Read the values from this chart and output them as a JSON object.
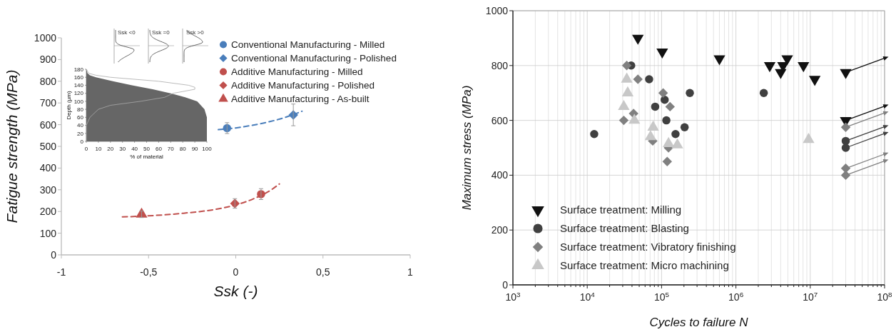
{
  "chart_data": [
    {
      "type": "scatter",
      "xlabel": "Ssk (-)",
      "ylabel": "Fatigue strength (MPa)",
      "xlim": [
        -1,
        1
      ],
      "ylim": [
        0,
        1000
      ],
      "xticks": [
        {
          "value": -1,
          "label": "-1"
        },
        {
          "value": -0.5,
          "label": "-0,5"
        },
        0,
        {
          "value": 0.5,
          "label": "0,5"
        },
        1
      ],
      "yticks": [
        0,
        100,
        200,
        300,
        400,
        500,
        600,
        700,
        800,
        900,
        1000
      ],
      "grid": false,
      "legend": "top right",
      "series": [
        {
          "name": "Conventional Manufacturing - Milled",
          "color": "#4a7ebb",
          "marker": "circle",
          "x": [
            -0.05
          ],
          "values": [
            584
          ],
          "errors": [
            25
          ]
        },
        {
          "name": "Conventional Manufacturing - Polished",
          "color": "#4a7ebb",
          "marker": "diamond",
          "x": [
            0.33
          ],
          "values": [
            645
          ],
          "errors": [
            50
          ]
        },
        {
          "name": "Additive Manufacturing - Milled",
          "color": "#c0504d",
          "marker": "circle",
          "x": [
            0.145
          ],
          "values": [
            280
          ],
          "errors": [
            25
          ]
        },
        {
          "name": "Additive Manufacturing - Polished",
          "color": "#c0504d",
          "marker": "diamond",
          "x": [
            -0.005
          ],
          "values": [
            237
          ],
          "errors": [
            22
          ]
        },
        {
          "name": "Additive Manufacturing - As-built",
          "color": "#c0504d",
          "marker": "triangle",
          "x": [
            -0.54
          ],
          "values": [
            187
          ],
          "errors": [
            15
          ]
        },
        {
          "type": "line",
          "color": "#4a7ebb",
          "line_style": "dashed",
          "x": [
            -0.1,
            0,
            0.1,
            0.2,
            0.3,
            0.38
          ],
          "values": [
            577,
            585,
            598,
            615,
            638,
            662
          ]
        },
        {
          "type": "line",
          "color": "#c0504d",
          "line_style": "dashed",
          "x": [
            -0.65,
            -0.5,
            -0.3,
            -0.1,
            0,
            0.1,
            0.2,
            0.25
          ],
          "values": [
            175,
            180,
            192,
            212,
            230,
            258,
            298,
            327
          ]
        }
      ]
    },
    {
      "type": "area",
      "orientation": "horizontal",
      "xlabel": "% of material",
      "ylabel": "Depth (µm)",
      "xlim": [
        0,
        100
      ],
      "ylim": [
        0,
        180
      ],
      "xticks": [
        0,
        10,
        20,
        30,
        40,
        50,
        60,
        70,
        80,
        90,
        100
      ],
      "yticks": [
        0,
        20,
        40,
        60,
        80,
        100,
        120,
        140,
        160,
        180
      ],
      "annotations": [
        "Ssk <0",
        "Ssk =0",
        "Ssk >0"
      ],
      "series": [
        {
          "type": "line",
          "color": "#aaaaaa",
          "x": [
            0,
            40,
            60,
            80,
            90,
            100,
            110,
            120,
            130,
            135,
            140,
            150,
            160,
            165,
            170,
            180
          ],
          "values": [
            0,
            0,
            3,
            10,
            20,
            45,
            65,
            72,
            90,
            90,
            85,
            60,
            20,
            8,
            2,
            0
          ]
        },
        {
          "color": "#666666",
          "x": [
            0,
            60,
            80,
            100,
            110,
            120,
            130,
            140,
            150,
            160,
            165,
            170,
            180
          ],
          "values": [
            100,
            100,
            98,
            92,
            82,
            70,
            55,
            38,
            22,
            8,
            3,
            1,
            0
          ]
        }
      ]
    },
    {
      "type": "scatter",
      "xlabel": "Cycles to failure N",
      "ylabel": "Maximum stress (MPa)",
      "log": "x",
      "xlim": [
        1000,
        100000000
      ],
      "ylim": [
        0,
        1000
      ],
      "xticks": [
        {
          "value": 1000,
          "label": "10$^{3}$"
        },
        {
          "value": 2000,
          "label": null
        },
        {
          "value": 3000,
          "label": null
        },
        {
          "value": 4000,
          "label": null
        },
        {
          "value": 5000,
          "label": null
        },
        {
          "value": 6000,
          "label": null
        },
        {
          "value": 7000,
          "label": null
        },
        {
          "value": 8000,
          "label": null
        },
        {
          "value": 9000,
          "label": null
        },
        {
          "value": 10000,
          "label": "10$^{4}$"
        },
        {
          "value": 20000,
          "label": null
        },
        {
          "value": 30000,
          "label": null
        },
        {
          "value": 40000,
          "label": null
        },
        {
          "value": 50000,
          "label": null
        },
        {
          "value": 60000,
          "label": null
        },
        {
          "value": 70000,
          "label": null
        },
        {
          "value": 80000,
          "label": null
        },
        {
          "value": 90000,
          "label": null
        },
        {
          "value": 100000,
          "label": "10$^{5}$"
        },
        {
          "value": 200000,
          "label": null
        },
        {
          "value": 300000,
          "label": null
        },
        {
          "value": 400000,
          "label": null
        },
        {
          "value": 500000,
          "label": null
        },
        {
          "value": 600000,
          "label": null
        },
        {
          "value": 700000,
          "label": null
        },
        {
          "value": 800000,
          "label": null
        },
        {
          "value": 900000,
          "label": null
        },
        {
          "value": 1000000,
          "label": "10$^{6}$"
        },
        {
          "value": 2000000,
          "label": null
        },
        {
          "value": 3000000,
          "label": null
        },
        {
          "value": 4000000,
          "label": null
        },
        {
          "value": 5000000,
          "label": null
        },
        {
          "value": 6000000,
          "label": null
        },
        {
          "value": 7000000,
          "label": null
        },
        {
          "value": 8000000,
          "label": null
        },
        {
          "value": 9000000,
          "label": null
        },
        {
          "value": 10000000,
          "label": "10$^{7}$"
        },
        {
          "value": 20000000,
          "label": null
        },
        {
          "value": 30000000,
          "label": null
        },
        {
          "value": 40000000,
          "label": null
        },
        {
          "value": 50000000,
          "label": null
        },
        {
          "value": 60000000,
          "label": null
        },
        {
          "value": 70000000,
          "label": null
        },
        {
          "value": 80000000,
          "label": null
        },
        {
          "value": 90000000,
          "label": null
        },
        {
          "value": 100000000,
          "label": "10$^{8}$"
        }
      ],
      "yticks": [
        0,
        200,
        400,
        600,
        800,
        1000
      ],
      "grid": true,
      "legend": "bottom left",
      "series": [
        {
          "name": "Surface treatment: Milling",
          "color": "#111111",
          "marker": "triangle-down",
          "x": [
            48000,
            102000,
            600000,
            2850000,
            4000000,
            4300000,
            4900000,
            8100000,
            11500000,
            30000000,
            30000000
          ],
          "values": [
            900,
            850,
            825,
            800,
            775,
            800,
            825,
            800,
            750,
            775,
            600
          ]
        },
        {
          "name": "Surface treatment: Blasting",
          "color": "#404040",
          "marker": "circle",
          "x": [
            12400,
            39000,
            68000,
            82000,
            110000,
            116000,
            154000,
            204000,
            240000,
            2370000,
            30000000,
            30000000
          ],
          "values": [
            550,
            800,
            750,
            650,
            675,
            600,
            550,
            575,
            700,
            700,
            525,
            500
          ]
        },
        {
          "name": "Surface treatment: Vibratory finishing",
          "color": "#808080",
          "marker": "diamond",
          "x": [
            34000,
            48000,
            31000,
            42000,
            76000,
            105000,
            130000,
            124000,
            119000,
            30000000,
            30000000,
            30000000
          ],
          "values": [
            800,
            750,
            600,
            625,
            525,
            700,
            650,
            500,
            450,
            575,
            425,
            400
          ]
        },
        {
          "name": "Surface treatment: Micro machining",
          "color": "#c8c8c8",
          "marker": "triangle",
          "x": [
            34000,
            35000,
            31000,
            43000,
            77000,
            71000,
            124000,
            163000,
            9500000
          ],
          "values": [
            750,
            700,
            650,
            600,
            575,
            540,
            515,
            510,
            530
          ]
        }
      ]
    }
  ]
}
